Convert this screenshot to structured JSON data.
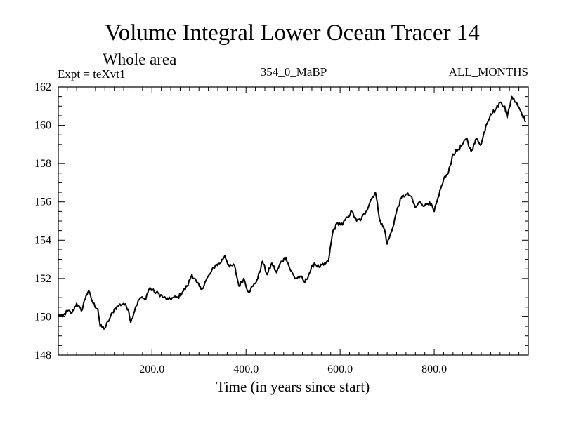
{
  "chart_data": {
    "type": "line",
    "title": "Volume Integral Lower Ocean Tracer 14",
    "subtitle": "Whole area",
    "expt_label": "Expt = teXvt1",
    "run_label": "354_0_MaBP",
    "period_label": "ALL_MONTHS",
    "xlabel": "Time (in years since start)",
    "ylabel": "",
    "xlim": [
      1,
      1000
    ],
    "ylim": [
      148,
      162
    ],
    "x_ticks": [
      200,
      400,
      600,
      800
    ],
    "x_tick_labels": [
      "200.0",
      "400.0",
      "600.0",
      "800.0"
    ],
    "y_ticks": [
      148,
      150,
      152,
      154,
      156,
      158,
      160,
      162
    ],
    "y_tick_labels": [
      "148",
      "150",
      "152",
      "154",
      "156",
      "158",
      "160",
      "162"
    ],
    "grid": false,
    "series": [
      {
        "name": "Volume Integral Lower Ocean Tracer 14",
        "points": [
          [
            1,
            150.1
          ],
          [
            10,
            150.0
          ],
          [
            20,
            150.3
          ],
          [
            30,
            150.2
          ],
          [
            40,
            150.7
          ],
          [
            50,
            150.3
          ],
          [
            60,
            151.1
          ],
          [
            65,
            151.35
          ],
          [
            75,
            150.7
          ],
          [
            85,
            150.4
          ],
          [
            90,
            149.5
          ],
          [
            100,
            149.4
          ],
          [
            110,
            149.9
          ],
          [
            120,
            150.4
          ],
          [
            130,
            150.6
          ],
          [
            140,
            150.7
          ],
          [
            150,
            150.4
          ],
          [
            155,
            149.7
          ],
          [
            165,
            150.5
          ],
          [
            175,
            151.0
          ],
          [
            185,
            150.9
          ],
          [
            195,
            151.5
          ],
          [
            205,
            151.3
          ],
          [
            215,
            151.2
          ],
          [
            225,
            151.0
          ],
          [
            235,
            150.9
          ],
          [
            245,
            151.0
          ],
          [
            255,
            151.0
          ],
          [
            265,
            151.3
          ],
          [
            275,
            151.6
          ],
          [
            285,
            152.2
          ],
          [
            295,
            151.8
          ],
          [
            305,
            151.4
          ],
          [
            315,
            151.9
          ],
          [
            325,
            152.3
          ],
          [
            335,
            152.7
          ],
          [
            345,
            152.8
          ],
          [
            355,
            153.2
          ],
          [
            365,
            152.6
          ],
          [
            375,
            152.7
          ],
          [
            385,
            151.6
          ],
          [
            395,
            152.0
          ],
          [
            405,
            151.3
          ],
          [
            415,
            151.6
          ],
          [
            425,
            152.0
          ],
          [
            435,
            152.9
          ],
          [
            445,
            152.2
          ],
          [
            455,
            152.8
          ],
          [
            465,
            152.3
          ],
          [
            475,
            152.9
          ],
          [
            485,
            153.1
          ],
          [
            495,
            152.4
          ],
          [
            505,
            152.0
          ],
          [
            515,
            152.1
          ],
          [
            525,
            151.8
          ],
          [
            535,
            152.3
          ],
          [
            545,
            152.8
          ],
          [
            555,
            152.6
          ],
          [
            565,
            152.7
          ],
          [
            575,
            152.9
          ],
          [
            585,
            154.5
          ],
          [
            595,
            154.9
          ],
          [
            605,
            154.8
          ],
          [
            615,
            155.2
          ],
          [
            625,
            155.5
          ],
          [
            635,
            155.0
          ],
          [
            645,
            155.1
          ],
          [
            655,
            155.5
          ],
          [
            665,
            156.1
          ],
          [
            675,
            156.5
          ],
          [
            685,
            155.0
          ],
          [
            695,
            154.5
          ],
          [
            700,
            153.8
          ],
          [
            710,
            154.5
          ],
          [
            720,
            155.5
          ],
          [
            730,
            156.2
          ],
          [
            740,
            156.4
          ],
          [
            750,
            156.3
          ],
          [
            760,
            155.7
          ],
          [
            770,
            156.0
          ],
          [
            780,
            155.8
          ],
          [
            790,
            156.0
          ],
          [
            800,
            155.5
          ],
          [
            810,
            156.3
          ],
          [
            820,
            157.2
          ],
          [
            830,
            157.5
          ],
          [
            840,
            158.5
          ],
          [
            850,
            158.7
          ],
          [
            860,
            159.0
          ],
          [
            870,
            159.3
          ],
          [
            875,
            158.8
          ],
          [
            880,
            158.7
          ],
          [
            890,
            159.3
          ],
          [
            900,
            159.0
          ],
          [
            910,
            160.0
          ],
          [
            920,
            160.6
          ],
          [
            930,
            160.8
          ],
          [
            940,
            161.2
          ],
          [
            950,
            161.0
          ],
          [
            955,
            160.4
          ],
          [
            965,
            161.5
          ],
          [
            975,
            161.2
          ],
          [
            985,
            160.7
          ],
          [
            995,
            160.2
          ]
        ]
      }
    ]
  }
}
